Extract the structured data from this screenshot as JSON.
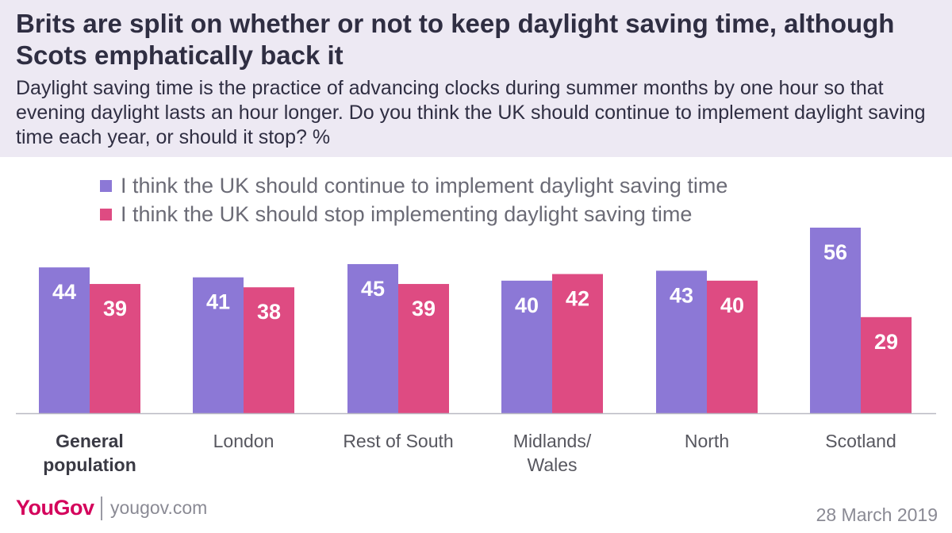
{
  "header": {
    "title": "Brits are split on whether or not to keep daylight saving time, although Scots emphatically back it",
    "subtitle": "Daylight saving time is the practice of advancing clocks during summer months by one hour so that evening daylight lasts an hour longer. Do you think the UK should continue to implement daylight saving time each year, or should it stop? %"
  },
  "legend": [
    {
      "label": "I think the UK should continue to implement daylight saving time",
      "color": "#8c78d6"
    },
    {
      "label": "I think the UK should stop implementing daylight saving time",
      "color": "#de4b82"
    }
  ],
  "chart_data": {
    "type": "bar",
    "title": "Brits are split on whether or not to keep daylight saving time, although Scots emphatically back it",
    "categories": [
      "General population",
      "London",
      "Rest of South",
      "Midlands/ Wales",
      "North",
      "Scotland"
    ],
    "category_lines": [
      [
        "General",
        "population"
      ],
      [
        "London"
      ],
      [
        "Rest of South"
      ],
      [
        "Midlands/",
        "Wales"
      ],
      [
        "North"
      ],
      [
        "Scotland"
      ]
    ],
    "bold_categories": [
      "General population"
    ],
    "series": [
      {
        "name": "I think the UK should continue to implement daylight saving time",
        "values": [
          44,
          41,
          45,
          40,
          43,
          56
        ],
        "color": "#8c78d6"
      },
      {
        "name": "I think the UK should stop implementing daylight saving time",
        "values": [
          39,
          38,
          39,
          42,
          40,
          29
        ],
        "color": "#de4b82"
      }
    ],
    "ylim": [
      0,
      56
    ],
    "xlabel": "",
    "ylabel": "",
    "grid": false,
    "legend_position": "top-left"
  },
  "footer": {
    "brand": "YouGov",
    "site": "yougov.com",
    "date": "28 March 2019",
    "brand_color": "#d4005b"
  }
}
